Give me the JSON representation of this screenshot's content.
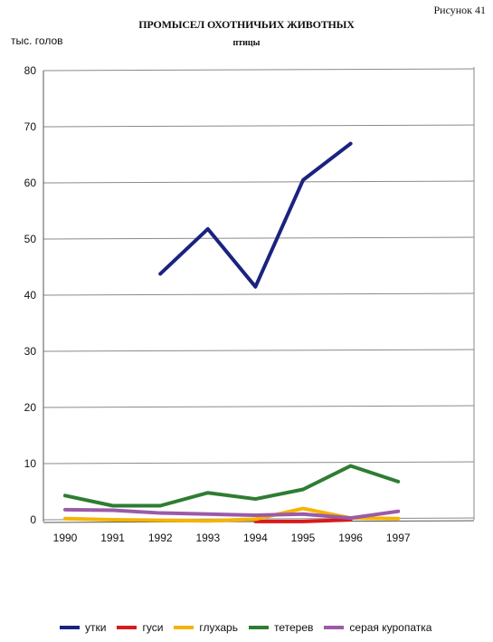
{
  "figure_label": "Рисунок 41",
  "chart_data": {
    "type": "line",
    "title": "ПРОМЫСЕЛ ОХОТНИЧЬИХ ЖИВОТНЫХ",
    "subtitle": "птицы",
    "ylabel": "тыс. голов",
    "xlabel": "",
    "categories": [
      "1990",
      "1991",
      "1992",
      "1993",
      "1994",
      "1995",
      "1996",
      "1997"
    ],
    "ylim": [
      0,
      80
    ],
    "yticks": [
      0,
      10,
      20,
      30,
      40,
      50,
      60,
      70,
      80
    ],
    "grid": true,
    "legend": "bottom",
    "series": [
      {
        "name": "утки",
        "color": "#1a237e",
        "values": [
          null,
          null,
          43.8,
          51.8,
          41.5,
          60.5,
          67.0,
          null
        ]
      },
      {
        "name": "гуси",
        "color": "#d81b1b",
        "values": [
          null,
          null,
          null,
          null,
          -0.3,
          -0.3,
          0.0,
          null
        ]
      },
      {
        "name": "глухарь",
        "color": "#f4b400",
        "values": [
          0.2,
          0.0,
          -0.1,
          -0.2,
          0.1,
          2.0,
          0.3,
          0.2
        ]
      },
      {
        "name": "тетерев",
        "color": "#2e7d32",
        "values": [
          4.3,
          2.5,
          2.5,
          4.8,
          3.7,
          5.4,
          9.6,
          6.8
        ]
      },
      {
        "name": "серая куропатка",
        "color": "#9c5aa8",
        "values": [
          1.8,
          1.7,
          1.2,
          1.0,
          0.8,
          1.0,
          0.3,
          1.5
        ]
      }
    ]
  }
}
